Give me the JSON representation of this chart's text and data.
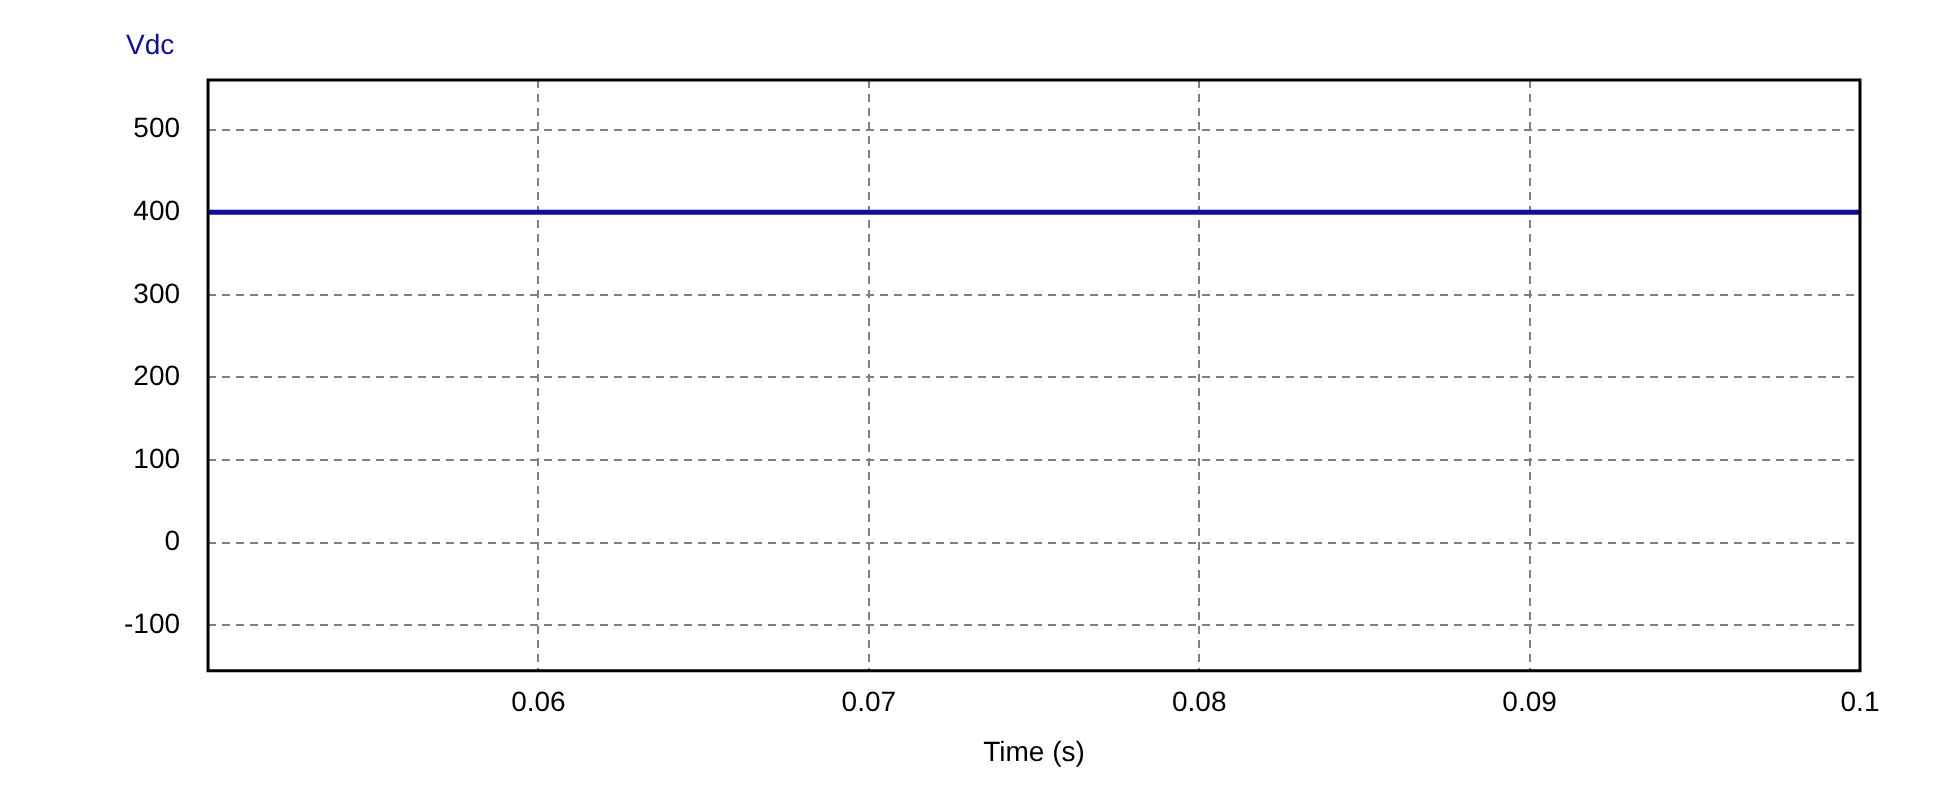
{
  "chart_data": {
    "type": "line",
    "xlabel": "Time (s)",
    "x": [
      0.05,
      0.1
    ],
    "series": [
      {
        "name": "Vdc",
        "color": "#0c0ca0",
        "values": [
          400,
          400
        ]
      }
    ],
    "xlim": [
      0.05,
      0.1
    ],
    "xticks": [
      0.06,
      0.07,
      0.08,
      0.09,
      0.1
    ],
    "ylim": [
      -155,
      560
    ],
    "yticks": [
      -100,
      0,
      100,
      200,
      300,
      400,
      500
    ],
    "grid": true,
    "legend": "top left",
    "marker": "none",
    "line_style": "solid"
  }
}
